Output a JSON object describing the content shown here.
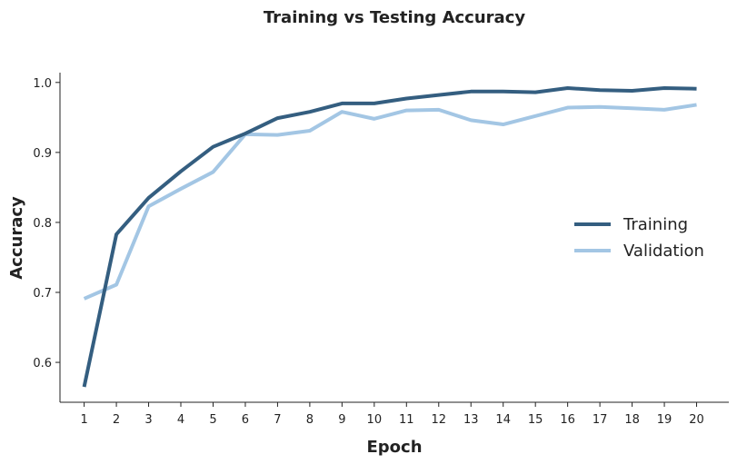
{
  "chart_data": {
    "type": "line",
    "title": "Training vs Testing Accuracy",
    "xlabel": "Epoch",
    "ylabel": "Accuracy",
    "x": [
      1,
      2,
      3,
      4,
      5,
      6,
      7,
      8,
      9,
      10,
      11,
      12,
      13,
      14,
      15,
      16,
      17,
      18,
      19,
      20
    ],
    "xticks": [
      "1",
      "2",
      "3",
      "4",
      "5",
      "6",
      "7",
      "8",
      "9",
      "10",
      "11",
      "12",
      "13",
      "14",
      "15",
      "16",
      "17",
      "18",
      "19",
      "20"
    ],
    "yticks": [
      "0.6",
      "0.7",
      "0.8",
      "0.9",
      "1.0"
    ],
    "ytick_values": [
      0.6,
      0.7,
      0.8,
      0.9,
      1.0
    ],
    "xlim": [
      0.25,
      21
    ],
    "ylim": [
      0.543,
      1.014
    ],
    "grid": false,
    "legend_position": "center-right",
    "series": [
      {
        "name": "Training",
        "color": "#345e80",
        "values": [
          0.565,
          0.783,
          0.835,
          0.873,
          0.908,
          0.927,
          0.949,
          0.958,
          0.97,
          0.97,
          0.977,
          0.982,
          0.987,
          0.987,
          0.986,
          0.992,
          0.989,
          0.988,
          0.992,
          0.991
        ]
      },
      {
        "name": "Validation",
        "color": "#a3c6e4",
        "values": [
          0.691,
          0.711,
          0.823,
          0.848,
          0.872,
          0.926,
          0.925,
          0.931,
          0.958,
          0.948,
          0.96,
          0.961,
          0.946,
          0.94,
          0.952,
          0.964,
          0.965,
          0.963,
          0.961,
          0.968
        ]
      }
    ]
  }
}
